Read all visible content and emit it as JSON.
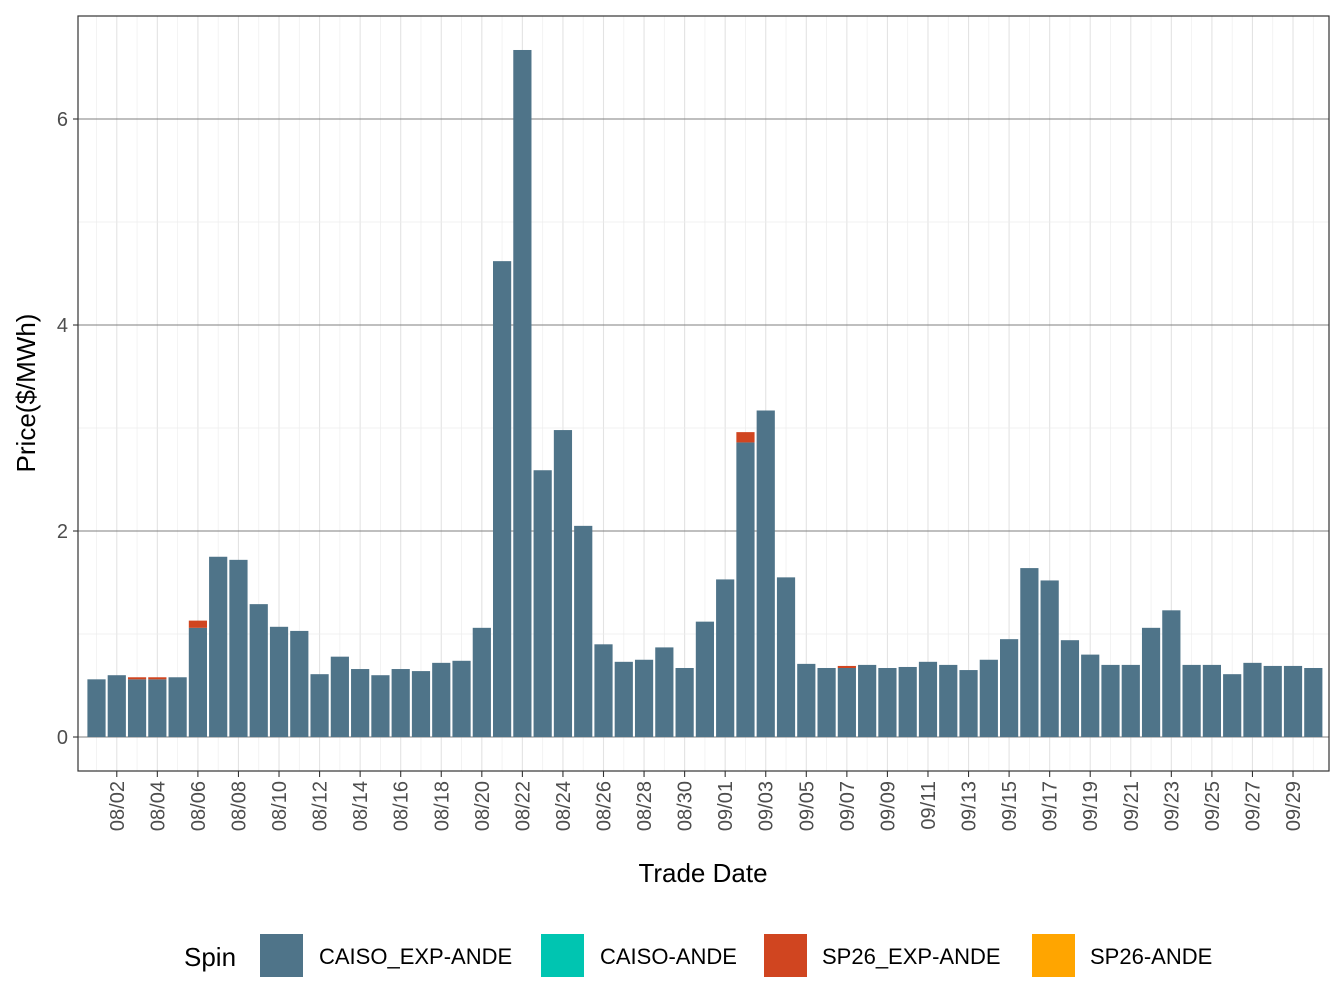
{
  "chart_data": {
    "type": "bar",
    "stacked": true,
    "title": "",
    "xlabel": "Trade Date",
    "ylabel": "Price($/MWh)",
    "ylim": [
      -0.33,
      7.0
    ],
    "yticks": [
      0,
      2,
      4,
      6
    ],
    "grid": true,
    "legend_position": "bottom",
    "legend_title": "Spin",
    "categories": [
      "08/01",
      "08/02",
      "08/03",
      "08/04",
      "08/05",
      "08/06",
      "08/07",
      "08/08",
      "08/09",
      "08/10",
      "08/11",
      "08/12",
      "08/13",
      "08/14",
      "08/15",
      "08/16",
      "08/17",
      "08/18",
      "08/19",
      "08/20",
      "08/21",
      "08/22",
      "08/23",
      "08/24",
      "08/25",
      "08/26",
      "08/27",
      "08/28",
      "08/29",
      "08/30",
      "08/31",
      "09/01",
      "09/02",
      "09/03",
      "09/04",
      "09/05",
      "09/06",
      "09/07",
      "09/08",
      "09/09",
      "09/10",
      "09/11",
      "09/12",
      "09/13",
      "09/14",
      "09/15",
      "09/16",
      "09/17",
      "09/18",
      "09/19",
      "09/20",
      "09/21",
      "09/22",
      "09/23",
      "09/24",
      "09/25",
      "09/26",
      "09/27",
      "09/28",
      "09/29",
      "09/30"
    ],
    "xtick_labels": [
      "08/02",
      "08/04",
      "08/06",
      "08/08",
      "08/10",
      "08/12",
      "08/14",
      "08/16",
      "08/18",
      "08/20",
      "08/22",
      "08/24",
      "08/26",
      "08/28",
      "08/30",
      "09/01",
      "09/03",
      "09/05",
      "09/07",
      "09/09",
      "09/11",
      "09/13",
      "09/15",
      "09/17",
      "09/19",
      "09/21",
      "09/23",
      "09/25",
      "09/27",
      "09/29"
    ],
    "series": [
      {
        "name": "CAISO_EXP-ANDE",
        "color": "#4f7489",
        "values": [
          0.56,
          0.6,
          0.56,
          0.56,
          0.58,
          1.06,
          1.75,
          1.72,
          1.29,
          1.07,
          1.03,
          0.61,
          0.78,
          0.66,
          0.6,
          0.66,
          0.64,
          0.72,
          0.74,
          1.06,
          4.62,
          6.67,
          2.59,
          2.98,
          2.05,
          0.9,
          0.73,
          0.75,
          0.87,
          0.67,
          1.12,
          1.53,
          2.86,
          3.17,
          1.55,
          0.71,
          0.67,
          0.67,
          0.7,
          0.67,
          0.68,
          0.73,
          0.7,
          0.65,
          0.75,
          0.95,
          1.64,
          1.52,
          0.94,
          0.8,
          0.7,
          0.7,
          1.06,
          1.23,
          0.7,
          0.7,
          0.61,
          0.72,
          0.69,
          0.69,
          0.67
        ]
      },
      {
        "name": "CAISO-ANDE",
        "color": "#00c5b1",
        "values": [
          0,
          0,
          0,
          0,
          0,
          0,
          0,
          0,
          0,
          0,
          0,
          0,
          0,
          0,
          0,
          0,
          0,
          0,
          0,
          0,
          0,
          0,
          0,
          0,
          0,
          0,
          0,
          0,
          0,
          0,
          0,
          0,
          0,
          0,
          0,
          0,
          0,
          0,
          0,
          0,
          0,
          0,
          0,
          0,
          0,
          0,
          0,
          0,
          0,
          0,
          0,
          0,
          0,
          0,
          0,
          0,
          0,
          0,
          0,
          0,
          0
        ]
      },
      {
        "name": "SP26_EXP-ANDE",
        "color": "#d04520",
        "values": [
          0,
          0,
          0.02,
          0.02,
          0,
          0.07,
          0,
          0,
          0,
          0,
          0,
          0,
          0,
          0,
          0,
          0,
          0,
          0,
          0,
          0,
          0,
          0,
          0,
          0,
          0,
          0,
          0,
          0,
          0,
          0,
          0,
          0,
          0.1,
          0,
          0,
          0,
          0,
          0.02,
          0,
          0,
          0,
          0,
          0,
          0,
          0,
          0,
          0,
          0,
          0,
          0,
          0,
          0,
          0,
          0,
          0,
          0,
          0,
          0,
          0,
          0,
          0
        ]
      },
      {
        "name": "SP26-ANDE",
        "color": "#ffa500",
        "values": [
          0,
          0,
          0,
          0,
          0,
          0,
          0,
          0,
          0,
          0,
          0,
          0,
          0,
          0,
          0,
          0,
          0,
          0,
          0,
          0,
          0,
          0,
          0,
          0,
          0,
          0,
          0,
          0,
          0,
          0,
          0,
          0,
          0,
          0,
          0,
          0,
          0,
          0,
          0,
          0,
          0,
          0,
          0,
          0,
          0,
          0,
          0,
          0,
          0,
          0,
          0,
          0,
          0,
          0,
          0,
          0,
          0,
          0,
          0,
          0,
          0
        ]
      }
    ]
  }
}
